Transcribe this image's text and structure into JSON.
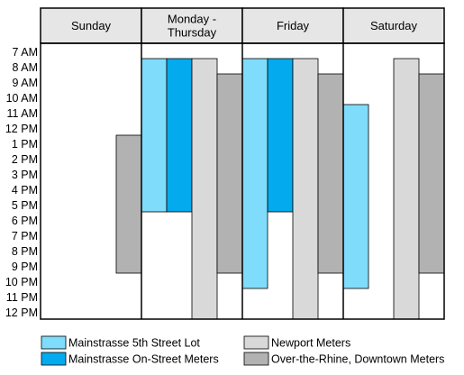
{
  "chart_data": {
    "type": "bar",
    "orientation": "range-columns",
    "categories": [
      "Sunday",
      "Monday -\nThursday",
      "Friday",
      "Saturday"
    ],
    "y_tick_labels": [
      "7 AM",
      "8 AM",
      "9 AM",
      "10 AM",
      "11 AM",
      "12 PM",
      "1 PM",
      "2 PM",
      "3 PM",
      "4 PM",
      "5 PM",
      "6 PM",
      "7 PM",
      "8 PM",
      "9 PM",
      "10 PM",
      "11 PM",
      "12 PM"
    ],
    "y_axis": {
      "direction": "top-to-bottom",
      "ylim": [
        7,
        25
      ]
    },
    "grid": false,
    "legend_position": "bottom",
    "series": [
      {
        "name": "Mainstrasse 5th Street Lot",
        "color": "#7fdcfb",
        "ranges": [
          null,
          [
            8,
            18
          ],
          [
            8,
            23
          ],
          [
            11,
            23
          ]
        ]
      },
      {
        "name": "Mainstrasse On-Street Meters",
        "color": "#04aaee",
        "ranges": [
          null,
          [
            8,
            18
          ],
          [
            8,
            18
          ],
          null
        ]
      },
      {
        "name": "Newport Meters",
        "color": "#d9d9d9",
        "ranges": [
          null,
          [
            8,
            25
          ],
          [
            8,
            25
          ],
          [
            8,
            25
          ]
        ]
      },
      {
        "name": "Over-the-Rhine, Downtown Meters",
        "color": "#b2b2b2",
        "ranges": [
          [
            13,
            22
          ],
          [
            9,
            22
          ],
          [
            9,
            22
          ],
          [
            9,
            22
          ]
        ]
      }
    ],
    "colors": {
      "header_bg": "#e6e6e6",
      "border": "#000000"
    }
  }
}
